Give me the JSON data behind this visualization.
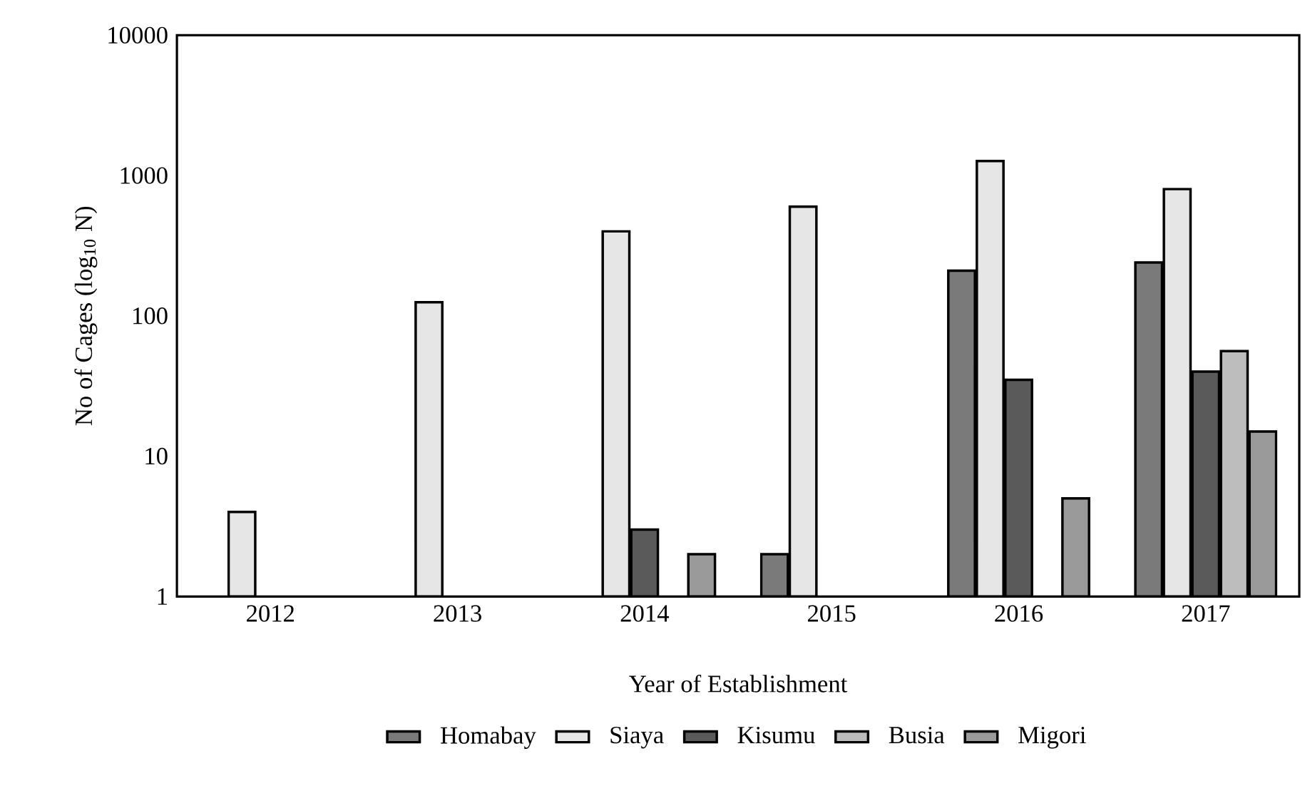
{
  "chart_data": {
    "type": "bar",
    "xlabel": "Year of Establishment",
    "ylabel": "No of Cages (log$_{10}$ N)",
    "categories": [
      "2012",
      "2013",
      "2014",
      "2015",
      "2016",
      "2017"
    ],
    "series": [
      {
        "name": "Homabay",
        "color": "#7a7a7a",
        "values": [
          null,
          null,
          null,
          2,
          210,
          240
        ]
      },
      {
        "name": "Siaya",
        "color": "#e6e6e6",
        "values": [
          4,
          125,
          400,
          600,
          1270,
          800
        ]
      },
      {
        "name": "Kisumu",
        "color": "#5a5a5a",
        "values": [
          null,
          null,
          3,
          null,
          35,
          40
        ]
      },
      {
        "name": "Busia",
        "color": "#bdbdbd",
        "values": [
          null,
          null,
          null,
          null,
          null,
          56
        ]
      },
      {
        "name": "Migori",
        "color": "#9a9a9a",
        "values": [
          null,
          null,
          2,
          null,
          5,
          15
        ]
      }
    ],
    "ylim": [
      1,
      10000
    ],
    "yticks": [
      1,
      10,
      100,
      1000,
      10000
    ],
    "log": true,
    "legend": "bottom",
    "grid": false
  }
}
